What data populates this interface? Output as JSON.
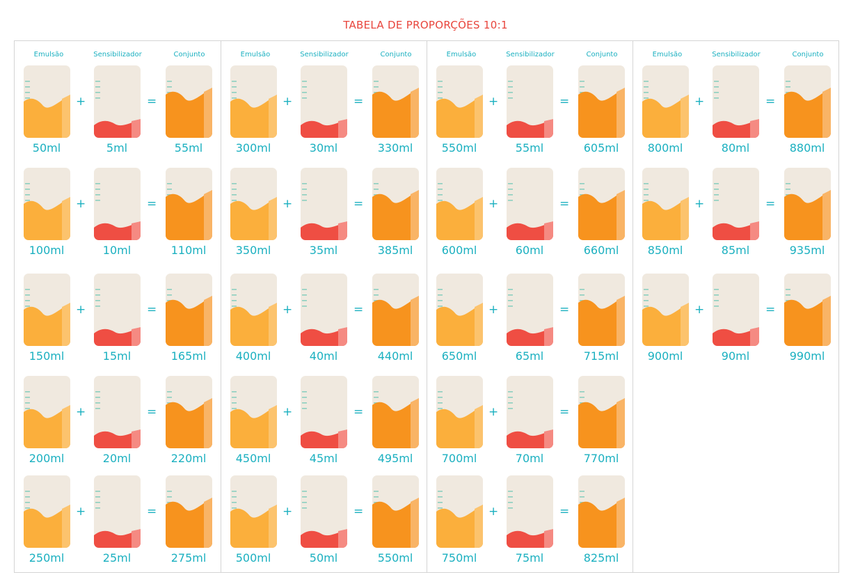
{
  "title": "TABELA DE PROPORÇÕES 10:1",
  "headers": {
    "emulsion": "Emulsão",
    "sensitizer": "Sensibilizador",
    "total": "Conjunto"
  },
  "operators": {
    "plus": "+",
    "equals": "="
  },
  "colors": {
    "title": "#e8453c",
    "text": "#1bb0c0",
    "beaker": "#f0e9df",
    "emulsion": "#fbaf3c",
    "emulsion_edge": "#fcc36d",
    "sensitizer": "#ef4e43",
    "sensitizer_edge": "#f58a82",
    "mix": "#f7931e",
    "mix_edge": "#f9b466",
    "marks": "#8ccfc0"
  },
  "columns": [
    {
      "rows": [
        {
          "emulsion": "50ml",
          "sensitizer": "5ml",
          "total": "55ml"
        },
        {
          "emulsion": "100ml",
          "sensitizer": "10ml",
          "total": "110ml"
        },
        {
          "emulsion": "150ml",
          "sensitizer": "15ml",
          "total": "165ml"
        },
        {
          "emulsion": "200ml",
          "sensitizer": "20ml",
          "total": "220ml"
        },
        {
          "emulsion": "250ml",
          "sensitizer": "25ml",
          "total": "275ml"
        }
      ]
    },
    {
      "rows": [
        {
          "emulsion": "300ml",
          "sensitizer": "30ml",
          "total": "330ml"
        },
        {
          "emulsion": "350ml",
          "sensitizer": "35ml",
          "total": "385ml"
        },
        {
          "emulsion": "400ml",
          "sensitizer": "40ml",
          "total": "440ml"
        },
        {
          "emulsion": "450ml",
          "sensitizer": "45ml",
          "total": "495ml"
        },
        {
          "emulsion": "500ml",
          "sensitizer": "50ml",
          "total": "550ml"
        }
      ]
    },
    {
      "rows": [
        {
          "emulsion": "550ml",
          "sensitizer": "55ml",
          "total": "605ml"
        },
        {
          "emulsion": "600ml",
          "sensitizer": "60ml",
          "total": "660ml"
        },
        {
          "emulsion": "650ml",
          "sensitizer": "65ml",
          "total": "715ml"
        },
        {
          "emulsion": "700ml",
          "sensitizer": "70ml",
          "total": "770ml"
        },
        {
          "emulsion": "750ml",
          "sensitizer": "75ml",
          "total": "825ml"
        }
      ]
    },
    {
      "rows": [
        {
          "emulsion": "800ml",
          "sensitizer": "80ml",
          "total": "880ml"
        },
        {
          "emulsion": "850ml",
          "sensitizer": "85ml",
          "total": "935ml"
        },
        {
          "emulsion": "900ml",
          "sensitizer": "90ml",
          "total": "990ml"
        }
      ]
    }
  ]
}
